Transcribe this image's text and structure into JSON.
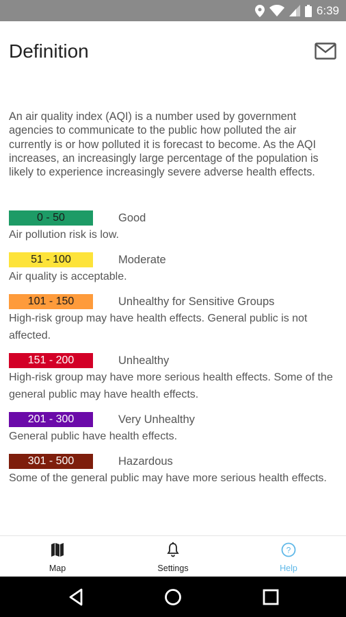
{
  "status_bar": {
    "time": "6:39"
  },
  "header": {
    "title": "Definition",
    "mail_icon": "mail-icon"
  },
  "intro": "An air quality index (AQI) is a number used by government agencies to communicate to the public how polluted the air currently is or how polluted it is forecast to become. As the AQI increases, an increasingly large percentage of the population is likely to experience increasingly severe adverse health effects.",
  "levels": [
    {
      "range": "0 - 50",
      "name": "Good",
      "description": "Air pollution risk is low.",
      "color": "#1d9b66",
      "text_color": "#1a1a1a"
    },
    {
      "range": "51 - 100",
      "name": "Moderate",
      "description": "Air quality is acceptable.",
      "color": "#fde33a",
      "text_color": "#1a1a1a"
    },
    {
      "range": "101 - 150",
      "name": "Unhealthy for Sensitive Groups",
      "description": "High-risk group may have health effects. General public is not affected.",
      "color": "#fe9b3b",
      "text_color": "#1a1a1a"
    },
    {
      "range": "151 - 200",
      "name": "Unhealthy",
      "description": "High-risk group may have more serious health effects. Some of the general public may have health effects.",
      "color": "#d30027",
      "text_color": "#ffffff"
    },
    {
      "range": "201 - 300",
      "name": "Very Unhealthy",
      "description": "General public have health effects.",
      "color": "#6b0aa9",
      "text_color": "#ffffff"
    },
    {
      "range": "301 - 500",
      "name": "Hazardous",
      "description": "Some of the general public may have more serious health effects.",
      "color": "#7e1e0c",
      "text_color": "#ffffff"
    }
  ],
  "bottom_nav": {
    "tabs": [
      {
        "label": "Map",
        "icon": "map-icon",
        "active": false
      },
      {
        "label": "Settings",
        "icon": "bell-icon",
        "active": false
      },
      {
        "label": "Help",
        "icon": "help-icon",
        "active": true
      }
    ],
    "active_color": "#5fb8e8"
  },
  "system_nav": {
    "icons": [
      "back-icon",
      "home-icon",
      "recents-icon"
    ]
  }
}
